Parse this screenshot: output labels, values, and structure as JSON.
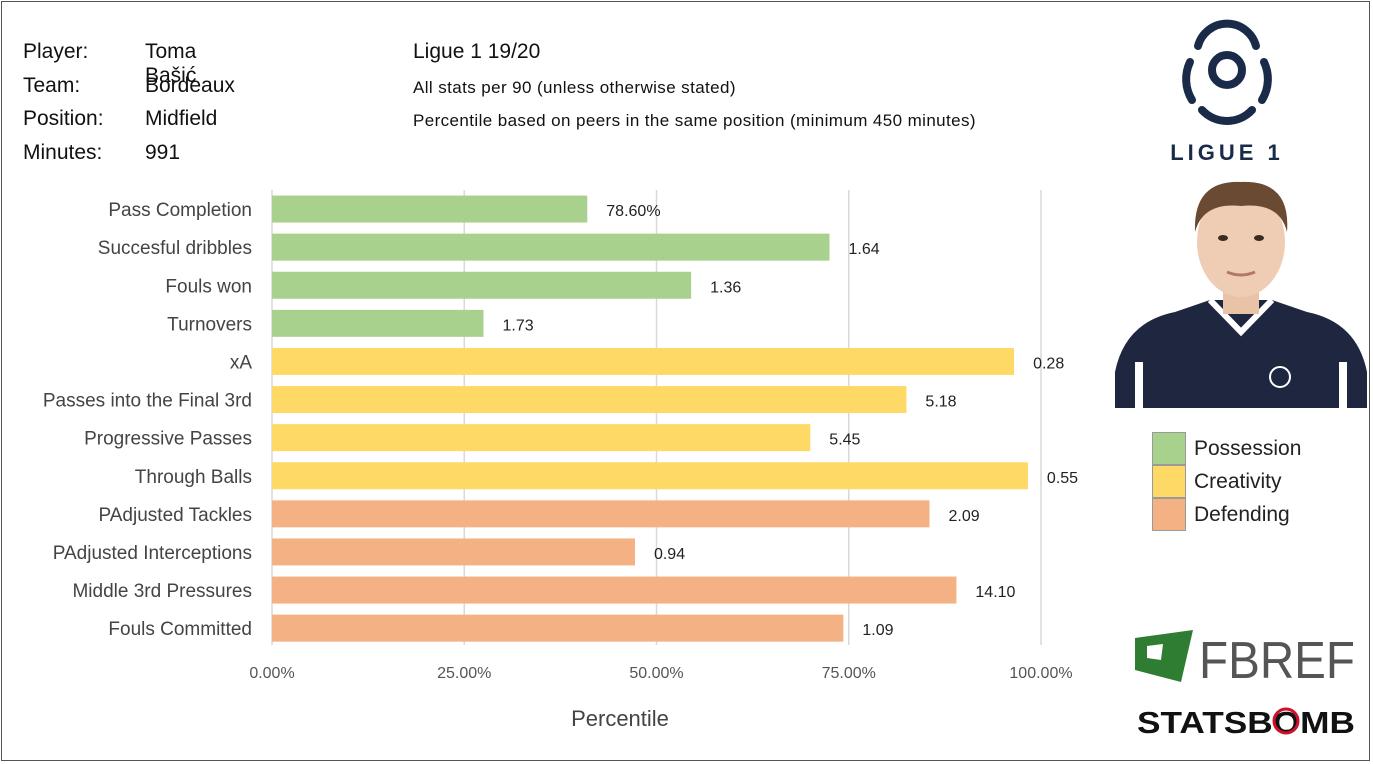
{
  "header": {
    "rows": [
      {
        "label": "Player:",
        "value": "Toma Bašić"
      },
      {
        "label": "Team:",
        "value": "Bordeaux"
      },
      {
        "label": "Position:",
        "value": "Midfield"
      },
      {
        "label": "Minutes:",
        "value": "991"
      }
    ],
    "league_title": "Ligue 1 19/20",
    "note_per90": "All stats per 90 (unless otherwise stated)",
    "note_percentile": "Percentile based on peers in the same position (minimum 450 minutes)"
  },
  "colors": {
    "possession": "#a9d18e",
    "creativity": "#ffd966",
    "defending": "#f4b183",
    "grid": "#d9d9d9"
  },
  "legend": [
    {
      "key": "possession",
      "label": "Possession"
    },
    {
      "key": "creativity",
      "label": "Creativity"
    },
    {
      "key": "defending",
      "label": "Defending"
    }
  ],
  "logos": {
    "ligue_text": "LIGUE 1",
    "fbref_text": "FBREF",
    "statsbomb_text": "STATSBOMB"
  },
  "chart_data": {
    "type": "bar",
    "orientation": "horizontal",
    "xlabel": "Percentile",
    "xlim": [
      0,
      100
    ],
    "ticks": [
      0,
      25,
      50,
      75,
      100
    ],
    "tick_labels": [
      "0.00%",
      "25.00%",
      "50.00%",
      "75.00%",
      "100.00%"
    ],
    "grid": true,
    "bars": [
      {
        "label": "Pass Completion",
        "percentile": 41,
        "value_label": "78.60%",
        "group": "possession"
      },
      {
        "label": "Succesful dribbles",
        "percentile": 72.5,
        "value_label": "1.64",
        "group": "possession"
      },
      {
        "label": "Fouls won",
        "percentile": 54.5,
        "value_label": "1.36",
        "group": "possession"
      },
      {
        "label": "Turnovers",
        "percentile": 27.5,
        "value_label": "1.73",
        "group": "possession"
      },
      {
        "label": "xA",
        "percentile": 96.5,
        "value_label": "0.28",
        "group": "creativity"
      },
      {
        "label": "Passes into the Final 3rd",
        "percentile": 82.5,
        "value_label": "5.18",
        "group": "creativity"
      },
      {
        "label": "Progressive Passes",
        "percentile": 70,
        "value_label": "5.45",
        "group": "creativity"
      },
      {
        "label": "Through Balls",
        "percentile": 98.3,
        "value_label": "0.55",
        "group": "creativity"
      },
      {
        "label": "PAdjusted Tackles",
        "percentile": 85.5,
        "value_label": "2.09",
        "group": "defending"
      },
      {
        "label": "PAdjusted Interceptions",
        "percentile": 47.2,
        "value_label": "0.94",
        "group": "defending"
      },
      {
        "label": "Middle 3rd Pressures",
        "percentile": 89,
        "value_label": "14.10",
        "group": "defending"
      },
      {
        "label": "Fouls Committed",
        "percentile": 74.3,
        "value_label": "1.09",
        "group": "defending"
      }
    ]
  }
}
